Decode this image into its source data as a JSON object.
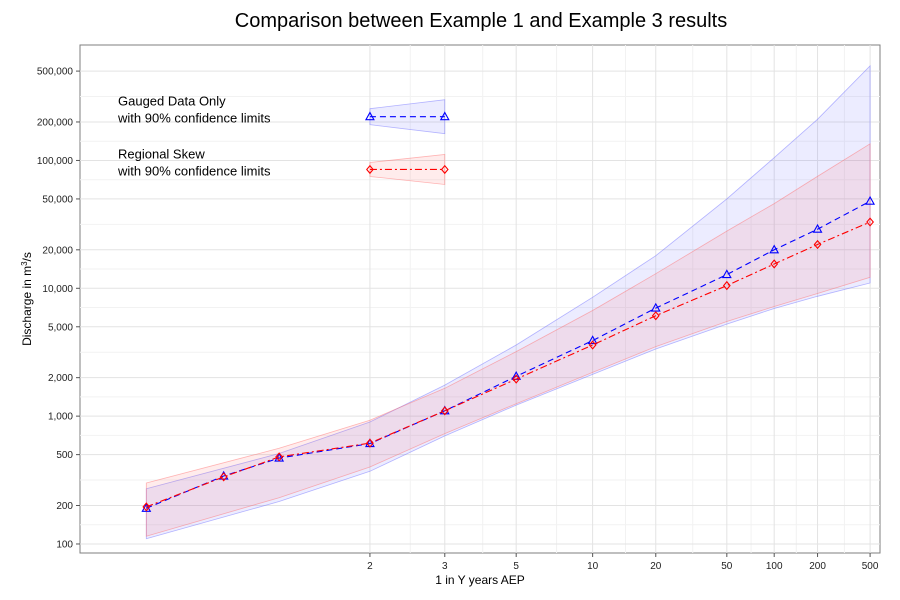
{
  "chart_data": {
    "type": "line",
    "title": "Comparison between Example 1 and Example 3 results",
    "xlabel": "1 in Y years AEP",
    "ylabel_main": "Discharge in m",
    "ylabel_sup": "3",
    "ylabel_tail": "/s",
    "x_scale": "probability",
    "y_scale": "log",
    "xlim": [
      1.05,
      600
    ],
    "ylim": [
      85,
      800000
    ],
    "grid": true,
    "x_ticks": [
      2,
      3,
      5,
      10,
      20,
      50,
      100,
      200,
      500
    ],
    "x_tick_labels": [
      "2",
      "3",
      "5",
      "10",
      "20",
      "50",
      "100",
      "200",
      "500"
    ],
    "y_ticks": [
      100,
      200,
      500,
      1000,
      2000,
      5000,
      10000,
      20000,
      50000,
      100000,
      200000,
      500000
    ],
    "y_tick_labels": [
      "100",
      "200",
      "500",
      "1,000",
      "2,000",
      "5,000",
      "10,000",
      "20,000",
      "50,000",
      "100,000",
      "200,000",
      "500,000"
    ],
    "x": [
      1.11,
      1.25,
      1.43,
      2,
      3,
      5,
      10,
      20,
      50,
      100,
      200,
      500
    ],
    "band_x": [
      1.11,
      1.43,
      2,
      3,
      5,
      10,
      20,
      50,
      100,
      200,
      500
    ],
    "series": [
      {
        "name": "Gauged Data Only",
        "color": "#0000ff",
        "band_color": "#7070ff",
        "marker": "triangle",
        "dash": "6,4",
        "values": [
          190,
          340,
          470,
          610,
          1100,
          2050,
          3900,
          7000,
          12800,
          20000,
          29000,
          48000
        ],
        "lower": [
          110,
          215,
          370,
          700,
          1220,
          2120,
          3350,
          5250,
          6950,
          8650,
          11000
        ],
        "upper": [
          270,
          510,
          900,
          1750,
          3600,
          8500,
          18000,
          50000,
          105000,
          210000,
          550000
        ]
      },
      {
        "name": "Regional Skew",
        "color": "#ff0000",
        "band_color": "#ff7070",
        "marker": "diamond",
        "dash": "7,3,2,3",
        "values": [
          195,
          335,
          480,
          615,
          1100,
          1950,
          3600,
          6100,
          10500,
          15500,
          22000,
          33000
        ],
        "lower": [
          115,
          230,
          400,
          730,
          1250,
          2200,
          3500,
          5500,
          7200,
          9100,
          12200
        ],
        "upper": [
          300,
          560,
          930,
          1650,
          3200,
          6700,
          13000,
          28000,
          46000,
          75000,
          135000
        ]
      }
    ],
    "legend": {
      "position": "top-left",
      "entries": [
        {
          "line1": "Gauged Data Only",
          "line2": "with 90% confidence limits",
          "value": 220000
        },
        {
          "line1": "Regional Skew",
          "line2": "with 90% confidence limits",
          "value": 85000
        }
      ]
    }
  }
}
